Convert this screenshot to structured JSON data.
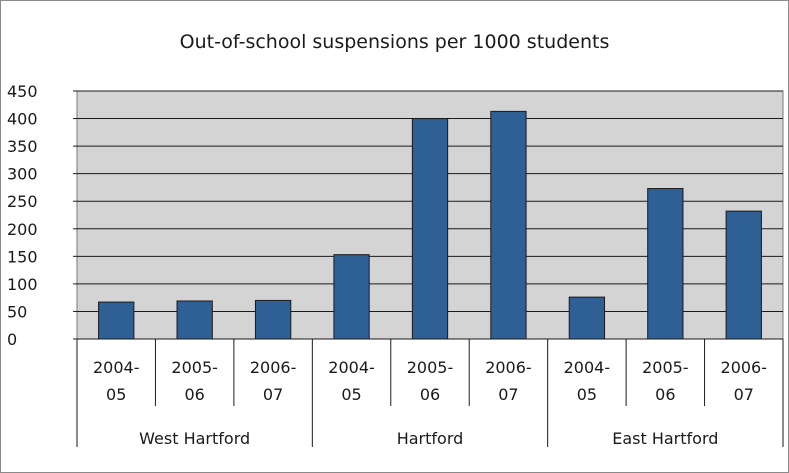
{
  "chart_data": {
    "type": "bar",
    "title": "Out-of-school suspensions per 1000 students",
    "xlabel": "",
    "ylabel": "",
    "ylim": [
      0,
      450
    ],
    "yticks": [
      0,
      50,
      100,
      150,
      200,
      250,
      300,
      350,
      400,
      450
    ],
    "grid": true,
    "bar_color": "#2e6096",
    "plot_background": "#d4d4d4",
    "groups": [
      {
        "name": "West Hartford",
        "categories": [
          [
            "2004-",
            "05"
          ],
          [
            "2005-",
            "06"
          ],
          [
            "2006-",
            "07"
          ]
        ],
        "values": [
          67,
          69,
          70
        ]
      },
      {
        "name": "Hartford",
        "categories": [
          [
            "2004-",
            "05"
          ],
          [
            "2005-",
            "06"
          ],
          [
            "2006-",
            "07"
          ]
        ],
        "values": [
          153,
          400,
          413
        ]
      },
      {
        "name": "East Hartford",
        "categories": [
          [
            "2004-",
            "05"
          ],
          [
            "2005-",
            "06"
          ],
          [
            "2006-",
            "07"
          ]
        ],
        "values": [
          76,
          273,
          232
        ]
      }
    ]
  }
}
